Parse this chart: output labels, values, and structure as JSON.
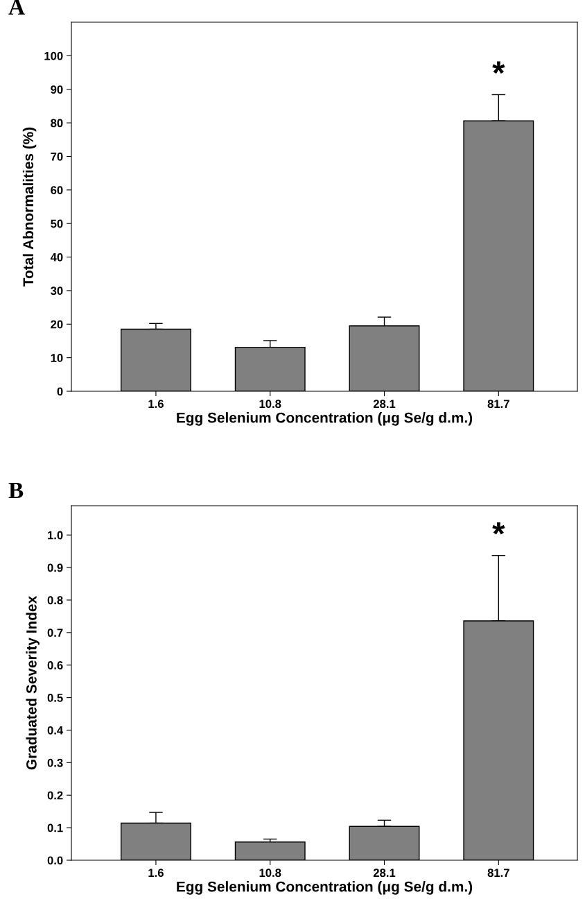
{
  "chart_data": [
    {
      "type": "bar",
      "title": "A",
      "xlabel": "Egg Selenium Concentration (μg Se/g d.m.)",
      "ylabel": "Total Abnormalities (%)",
      "categories": [
        "1.6",
        "10.8",
        "28.1",
        "81.7"
      ],
      "values": [
        18.5,
        13.1,
        19.5,
        80.6
      ],
      "errors": [
        [
          18.5,
          20.2
        ],
        [
          13.1,
          15.1
        ],
        [
          19.5,
          22.1
        ],
        [
          80.6,
          88.4
        ]
      ],
      "color": "#808080",
      "ylim": [
        0,
        110
      ],
      "yticks": [
        0,
        10,
        20,
        30,
        40,
        50,
        60,
        70,
        80,
        90,
        100
      ],
      "grid": false,
      "legend": false,
      "annotations": [
        "*"
      ]
    },
    {
      "type": "bar",
      "title": "B",
      "xlabel": "Egg Selenium Concentration (μg Se/g d.m.)",
      "ylabel": "Graduated Severity Index",
      "categories": [
        "1.6",
        "10.8",
        "28.1",
        "81.7"
      ],
      "values": [
        0.114,
        0.056,
        0.104,
        0.736
      ],
      "errors": [
        [
          0.114,
          0.147
        ],
        [
          0.056,
          0.065
        ],
        [
          0.104,
          0.123
        ],
        [
          0.736,
          0.937
        ]
      ],
      "color": "#808080",
      "ylim": [
        0,
        1.09
      ],
      "yticks": [
        {
          "value": 0,
          "label": "0.0"
        },
        0.1,
        0.2,
        0.3,
        0.4,
        0.5,
        0.6,
        0.7,
        0.8,
        0.9,
        {
          "value": 1,
          "label": "1.0"
        }
      ],
      "grid": false,
      "legend": false,
      "annotations": [
        "*"
      ]
    }
  ]
}
